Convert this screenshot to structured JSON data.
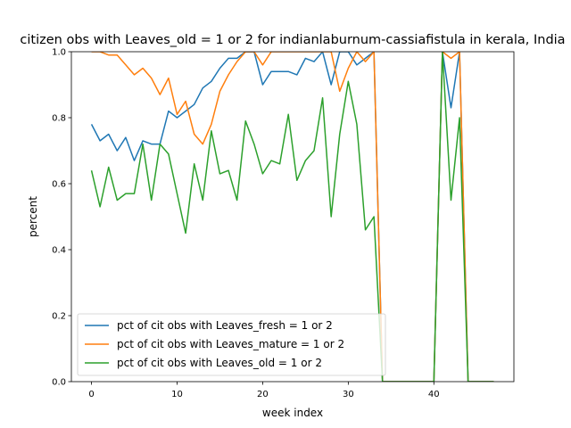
{
  "chart_data": {
    "type": "line",
    "title": "citizen obs with Leaves_old = 1 or 2 for indianlaburnum-cassiafistula in kerala, India",
    "xlabel": "week index",
    "ylabel": "percent",
    "xlim": [
      -2.35,
      49.35
    ],
    "ylim": [
      0,
      1.0
    ],
    "xticks": [
      0,
      10,
      20,
      30,
      40
    ],
    "yticks": [
      0.0,
      0.2,
      0.4,
      0.6,
      0.8,
      1.0
    ],
    "ytick_labels": [
      "0.0",
      "0.2",
      "0.4",
      "0.6",
      "0.8",
      "1.0"
    ],
    "grid": false,
    "legend_position": "lower-left",
    "x": [
      0,
      1,
      2,
      3,
      4,
      5,
      6,
      7,
      8,
      9,
      10,
      11,
      12,
      13,
      14,
      15,
      16,
      17,
      18,
      19,
      20,
      21,
      22,
      23,
      24,
      25,
      26,
      27,
      28,
      29,
      30,
      31,
      32,
      33,
      34,
      35,
      36,
      37,
      38,
      39,
      40,
      41,
      42,
      43,
      44,
      45,
      46,
      47
    ],
    "series": [
      {
        "name": "pct of cit obs with Leaves_fresh = 1 or 2",
        "color": "#1f77b4",
        "values": [
          0.78,
          0.73,
          0.75,
          0.7,
          0.74,
          0.67,
          0.73,
          0.72,
          0.72,
          0.82,
          0.8,
          0.82,
          0.84,
          0.89,
          0.91,
          0.95,
          0.98,
          0.98,
          1.0,
          1.0,
          0.9,
          0.94,
          0.94,
          0.94,
          0.93,
          0.98,
          0.97,
          1.0,
          0.9,
          1.0,
          1.0,
          0.96,
          0.98,
          1.0,
          0.0,
          0.0,
          0.0,
          0.0,
          0.0,
          0.0,
          0.0,
          1.0,
          0.83,
          1.0,
          0.0,
          0.0,
          0.0,
          0.0
        ]
      },
      {
        "name": "pct of cit obs with Leaves_mature = 1 or 2",
        "color": "#ff7f0e",
        "values": [
          1.0,
          1.0,
          0.99,
          0.99,
          0.96,
          0.93,
          0.95,
          0.92,
          0.87,
          0.92,
          0.81,
          0.85,
          0.75,
          0.72,
          0.78,
          0.88,
          0.93,
          0.97,
          1.0,
          1.0,
          0.96,
          1.0,
          1.0,
          1.0,
          1.0,
          1.0,
          1.0,
          1.0,
          1.0,
          0.88,
          0.95,
          1.0,
          0.97,
          1.0,
          0.0,
          0.0,
          0.0,
          0.0,
          0.0,
          0.0,
          0.0,
          1.0,
          0.98,
          1.0,
          0.0,
          0.0,
          0.0,
          0.0
        ]
      },
      {
        "name": "pct of cit obs with Leaves_old = 1 or 2",
        "color": "#2ca02c",
        "values": [
          0.64,
          0.53,
          0.65,
          0.55,
          0.57,
          0.57,
          0.72,
          0.55,
          0.72,
          0.69,
          0.57,
          0.45,
          0.66,
          0.55,
          0.76,
          0.63,
          0.64,
          0.55,
          0.79,
          0.72,
          0.63,
          0.67,
          0.66,
          0.81,
          0.61,
          0.67,
          0.7,
          0.86,
          0.5,
          0.75,
          0.91,
          0.78,
          0.46,
          0.5,
          0.0,
          0.0,
          0.0,
          0.0,
          0.0,
          0.0,
          0.0,
          1.0,
          0.55,
          0.8,
          0.0,
          0.0,
          0.0,
          0.0
        ]
      }
    ]
  }
}
